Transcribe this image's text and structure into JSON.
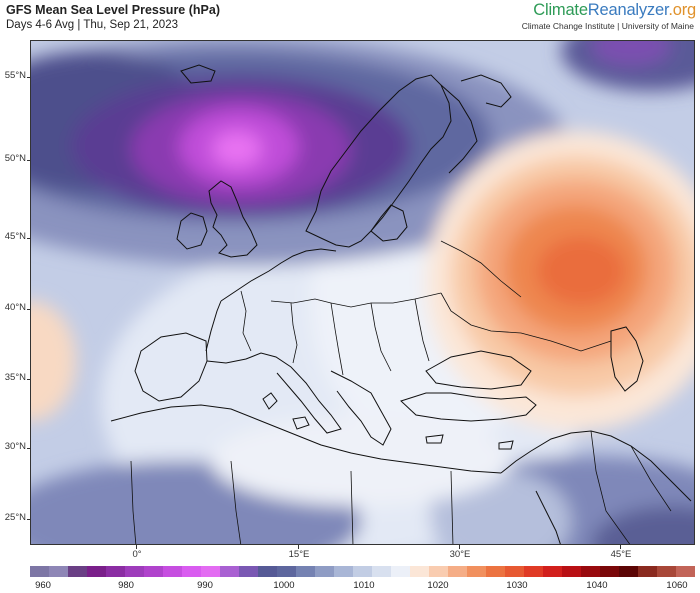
{
  "header": {
    "title": "GFS Mean Sea Level Pressure (hPa)",
    "subtitle": "Days 4-6 Avg | Thu, Sep 21, 2023"
  },
  "brand": {
    "name_part1": "Climate",
    "name_part2": "Reanalyzer",
    "name_part3": ".org",
    "tagline": "Climate Change Institute | University of Maine"
  },
  "map": {
    "lat_labels": [
      "55°N",
      "50°N",
      "45°N",
      "40°N",
      "35°N",
      "30°N",
      "25°N"
    ],
    "lon_labels": [
      "0°",
      "15°E",
      "30°E",
      "45°E"
    ],
    "features": {
      "low_center": "low pressure over the North Sea (~984 hPa)",
      "high_center": "high pressure over southern Russia (~1027 hPa)"
    }
  },
  "colorbar": {
    "labels": [
      "960",
      "980",
      "990",
      "1000",
      "1010",
      "1020",
      "1030",
      "1040",
      "1060"
    ],
    "colors": [
      "#7d76a5",
      "#8e86b6",
      "#6a3f85",
      "#7a1f8a",
      "#8b2da3",
      "#9e3cbb",
      "#b043cc",
      "#c64ee0",
      "#d95cf0",
      "#e36cf2",
      "#a960d2",
      "#7a58b3",
      "#565a96",
      "#5e679e",
      "#7582b2",
      "#8f9cc4",
      "#a9b6d6",
      "#c2cde4",
      "#d8e0ef",
      "#ecf0f8",
      "#fbe6d7",
      "#f9ccb0",
      "#f5ad86",
      "#f1905e",
      "#ec7341",
      "#e75932",
      "#e03a25",
      "#d21f1c",
      "#b91014",
      "#990a0e",
      "#7a0709",
      "#5c0505",
      "#8a2a1f",
      "#a84738",
      "#c26458"
    ]
  }
}
